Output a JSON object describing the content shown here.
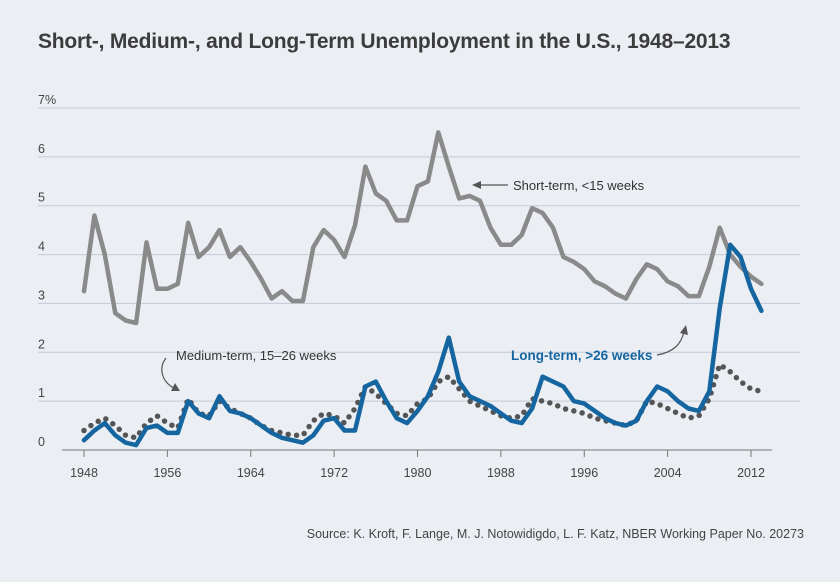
{
  "title": "Short-, Medium-, and Long-Term Unemployment in the U.S., 1948–2013",
  "source": "Source: K. Kroft, F. Lange, M. J. Notowidigdo, L. F. Katz, NBER Working Paper No. 20273",
  "colors": {
    "short": "#8a8a8a",
    "long": "#1565a0",
    "medium": "#555555",
    "grid": "#c5cbd6",
    "background": "#ebeef3"
  },
  "chart_data": {
    "type": "line",
    "title": "Short-, Medium-, and Long-Term Unemployment in the U.S., 1948–2013",
    "xlabel": "",
    "ylabel": "",
    "ylim": [
      0,
      7
    ],
    "xlim": [
      1946,
      2015
    ],
    "grid": true,
    "y_ticks": [
      "0",
      "1",
      "2",
      "3",
      "4",
      "5",
      "6",
      "7%"
    ],
    "x_ticks": [
      "1948",
      "1956",
      "1964",
      "1972",
      "1980",
      "1988",
      "1996",
      "2004",
      "2012"
    ],
    "x": [
      1948,
      1949,
      1950,
      1951,
      1952,
      1953,
      1954,
      1955,
      1956,
      1957,
      1958,
      1959,
      1960,
      1961,
      1962,
      1963,
      1964,
      1965,
      1966,
      1967,
      1968,
      1969,
      1970,
      1971,
      1972,
      1973,
      1974,
      1975,
      1976,
      1977,
      1978,
      1979,
      1980,
      1981,
      1982,
      1983,
      1984,
      1985,
      1986,
      1987,
      1988,
      1989,
      1990,
      1991,
      1992,
      1993,
      1994,
      1995,
      1996,
      1997,
      1998,
      1999,
      2000,
      2001,
      2002,
      2003,
      2004,
      2005,
      2006,
      2007,
      2008,
      2009,
      2010,
      2011,
      2012,
      2013
    ],
    "series": [
      {
        "name": "Short-term, <15 weeks",
        "style": "solid-gray",
        "values": [
          3.25,
          4.8,
          4.0,
          2.8,
          2.65,
          2.6,
          4.25,
          3.3,
          3.3,
          3.4,
          4.65,
          3.95,
          4.15,
          4.5,
          3.95,
          4.15,
          3.85,
          3.5,
          3.1,
          3.25,
          3.05,
          3.05,
          4.15,
          4.5,
          4.3,
          3.95,
          4.6,
          5.8,
          5.25,
          5.1,
          4.7,
          4.7,
          5.4,
          5.5,
          6.5,
          5.8,
          5.15,
          5.2,
          5.1,
          4.55,
          4.2,
          4.2,
          4.4,
          4.95,
          4.85,
          4.55,
          3.95,
          3.85,
          3.7,
          3.45,
          3.35,
          3.2,
          3.1,
          3.5,
          3.8,
          3.7,
          3.45,
          3.35,
          3.15,
          3.15,
          3.75,
          4.55,
          4.0,
          3.75,
          3.55,
          3.4
        ]
      },
      {
        "name": "Medium-term, 15–26 weeks",
        "style": "dotted-dark",
        "values": [
          0.4,
          0.55,
          0.65,
          0.5,
          0.3,
          0.25,
          0.55,
          0.7,
          0.55,
          0.45,
          1.05,
          0.75,
          0.7,
          1.0,
          0.85,
          0.75,
          0.65,
          0.5,
          0.4,
          0.35,
          0.3,
          0.3,
          0.6,
          0.75,
          0.7,
          0.55,
          0.85,
          1.3,
          1.15,
          0.95,
          0.75,
          0.7,
          0.95,
          1.05,
          1.4,
          1.5,
          1.25,
          1.0,
          0.9,
          0.8,
          0.7,
          0.65,
          0.7,
          1.05,
          1.0,
          0.95,
          0.85,
          0.8,
          0.75,
          0.65,
          0.6,
          0.55,
          0.5,
          0.6,
          1.0,
          0.95,
          0.85,
          0.75,
          0.65,
          0.7,
          1.05,
          1.75,
          1.6,
          1.4,
          1.25,
          1.2
        ]
      },
      {
        "name": "Long-term, >26 weeks",
        "style": "solid-blue",
        "values": [
          0.2,
          0.4,
          0.55,
          0.3,
          0.15,
          0.1,
          0.45,
          0.5,
          0.35,
          0.35,
          1.0,
          0.75,
          0.65,
          1.1,
          0.8,
          0.75,
          0.65,
          0.5,
          0.35,
          0.25,
          0.2,
          0.15,
          0.3,
          0.6,
          0.65,
          0.4,
          0.4,
          1.3,
          1.4,
          1.0,
          0.65,
          0.55,
          0.8,
          1.1,
          1.6,
          2.3,
          1.4,
          1.1,
          1.0,
          0.9,
          0.75,
          0.6,
          0.55,
          0.85,
          1.5,
          1.4,
          1.3,
          1.0,
          0.95,
          0.8,
          0.65,
          0.55,
          0.5,
          0.6,
          1.0,
          1.3,
          1.2,
          1.0,
          0.85,
          0.8,
          1.2,
          2.9,
          4.2,
          3.95,
          3.3,
          2.85
        ]
      }
    ],
    "annotations": [
      "Short-term, <15 weeks",
      "Medium-term, 15–26 weeks",
      "Long-term, >26 weeks"
    ]
  }
}
